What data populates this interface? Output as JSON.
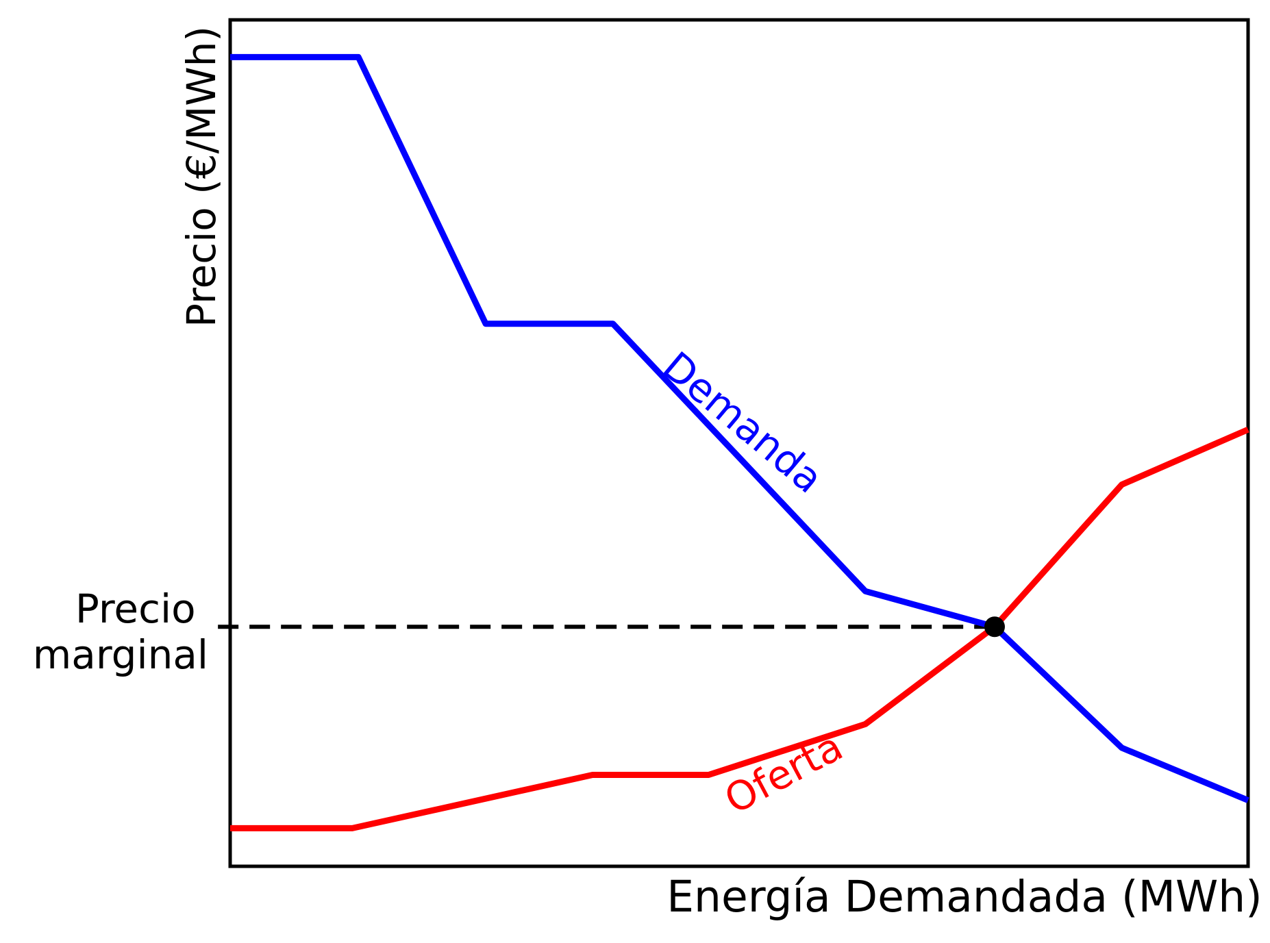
{
  "chart_data": {
    "type": "line",
    "title": "",
    "xlabel": "Energía Demandada (MWh)",
    "ylabel": "Precio (€/MWh)",
    "x_axis": {
      "range_norm": [
        0,
        1
      ],
      "tick_labels": []
    },
    "y_axis": {
      "range_norm": [
        0,
        1
      ],
      "tick_labels": []
    },
    "grid": false,
    "legend_position": "none (inline curve labels)",
    "background": "#ffffff",
    "axes_color": "#000000",
    "series": [
      {
        "name": "Demanda",
        "color": "#0000ff",
        "stroke_width": 9,
        "points": [
          [
            0.0,
            0.956
          ],
          [
            0.126,
            0.956
          ],
          [
            0.251,
            0.641
          ],
          [
            0.376,
            0.641
          ],
          [
            0.624,
            0.325
          ],
          [
            0.751,
            0.283
          ],
          [
            0.876,
            0.14
          ],
          [
            1.0,
            0.078
          ]
        ],
        "label": {
          "text": "Demanda",
          "x": 0.495,
          "y": 0.512,
          "rotation": 40
        }
      },
      {
        "name": "Oferta",
        "color": "#ff0000",
        "stroke_width": 9,
        "points": [
          [
            0.0,
            0.045
          ],
          [
            0.12,
            0.045
          ],
          [
            0.356,
            0.108
          ],
          [
            0.47,
            0.108
          ],
          [
            0.624,
            0.168
          ],
          [
            0.751,
            0.283
          ],
          [
            0.876,
            0.451
          ],
          [
            1.0,
            0.516
          ]
        ],
        "label": {
          "text": "Oferta",
          "x": 0.55,
          "y": 0.096,
          "rotation": -28
        }
      }
    ],
    "equilibrium_point": {
      "x": 0.751,
      "y": 0.283,
      "color": "#000000",
      "radius": 15
    },
    "marginal_price_guide": {
      "y": 0.283,
      "x_start": -0.012,
      "x_end": 0.751,
      "color": "#000000",
      "dash": [
        30,
        16
      ],
      "stroke_width": 6,
      "label_line1": "Precio",
      "label_line2": "marginal"
    }
  }
}
